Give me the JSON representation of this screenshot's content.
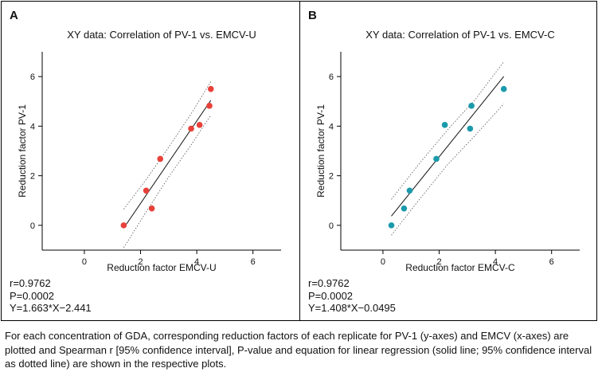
{
  "figure": {
    "panels": [
      {
        "letter": "A",
        "title": "XY data: Correlation of PV-1 vs. EMCV-U",
        "stats": [
          "r=0.9762",
          "P=0.0002",
          "Y=1.663*X−2.441"
        ]
      },
      {
        "letter": "B",
        "title": "XY data: Correlation of PV-1 vs. EMCV-C",
        "stats": [
          "r=0.9762",
          "P=0.0002",
          "Y=1.408*X−0.0495"
        ]
      }
    ],
    "caption": "For each concentration of GDA, corresponding reduction factors of each replicate for PV-1 (y-axes) and EMCV (x-axes) are plotted and Spearman r [95% confidence interval], P-value and equation for linear regression (solid line; 95% confidence interval as dotted line) are shown in the respective plots."
  },
  "chart_data": [
    {
      "type": "scatter",
      "title": "XY data: Correlation of PV-1 vs. EMCV-U",
      "xlabel": "Reduction factor EMCV-U",
      "ylabel": "Reduction factor PV-1",
      "xlim": [
        -1.5,
        7
      ],
      "ylim": [
        -1,
        7
      ],
      "xticks": [
        0,
        2,
        4,
        6
      ],
      "yticks": [
        0,
        2,
        4,
        6
      ],
      "grid": false,
      "marker_color": "#e8413a",
      "series": [
        {
          "x": [
            1.4,
            2.2,
            2.4,
            2.7,
            3.8,
            4.1,
            4.45,
            4.5
          ],
          "y": [
            0.0,
            1.4,
            0.68,
            2.68,
            3.9,
            4.05,
            4.82,
            5.5
          ]
        }
      ],
      "regression": {
        "slope": 1.663,
        "intercept": -2.441,
        "x_range": [
          1.4,
          4.5
        ]
      },
      "confidence_band": {
        "lower_x": [
          1.4,
          2.2,
          3.0,
          3.8,
          4.5
        ],
        "lower_y": [
          -0.9,
          0.55,
          1.95,
          3.25,
          4.45
        ],
        "upper_x": [
          1.4,
          2.2,
          3.0,
          3.8,
          4.5
        ],
        "upper_y": [
          0.65,
          1.85,
          3.15,
          4.5,
          5.8
        ]
      }
    },
    {
      "type": "scatter",
      "title": "XY data: Correlation of PV-1 vs. EMCV-C",
      "xlabel": "Reduction factor EMCV-C",
      "ylabel": "Reduction factor PV-1",
      "xlim": [
        -1.5,
        7
      ],
      "ylim": [
        -1,
        7
      ],
      "xticks": [
        0,
        2,
        4,
        6
      ],
      "yticks": [
        0,
        2,
        4,
        6
      ],
      "grid": false,
      "marker_color": "#1a9aab",
      "series": [
        {
          "x": [
            0.3,
            0.75,
            0.95,
            1.9,
            2.2,
            3.1,
            3.15,
            4.3
          ],
          "y": [
            0.0,
            0.68,
            1.4,
            2.68,
            4.05,
            3.9,
            4.82,
            5.5
          ]
        }
      ],
      "regression": {
        "slope": 1.408,
        "intercept": -0.0495,
        "x_range": [
          0.3,
          4.3
        ]
      },
      "confidence_band": {
        "lower_x": [
          0.3,
          1.3,
          2.3,
          3.3,
          4.3
        ],
        "lower_y": [
          -0.4,
          1.05,
          2.45,
          3.65,
          4.9
        ],
        "upper_x": [
          0.3,
          1.3,
          2.3,
          3.3,
          4.3
        ],
        "upper_y": [
          1.05,
          2.5,
          3.85,
          5.1,
          6.6
        ]
      }
    }
  ]
}
